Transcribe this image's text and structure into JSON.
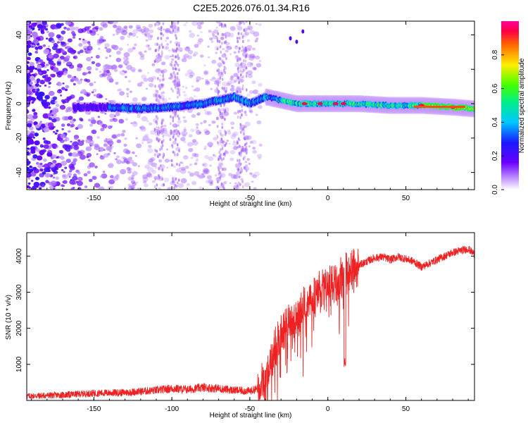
{
  "title": "C2E5.2026.076.01.34.R16",
  "chart_data": [
    {
      "type": "heatmap",
      "xlabel": "Height of straight line (km)",
      "ylabel": "Frequency (Hz)",
      "xlim": [
        -193,
        94
      ],
      "ylim": [
        -50,
        48
      ],
      "x_ticks": [
        -150,
        -100,
        -50,
        0,
        50
      ],
      "y_ticks": [
        -40,
        -20,
        0,
        20,
        40
      ],
      "colorbar": {
        "label": "Normalized spectral amplitude",
        "range": [
          0.0,
          1.0
        ],
        "ticks": [
          0.0,
          0.2,
          0.4,
          0.6,
          0.8
        ],
        "tick_labels": [
          "0.0",
          "0.2",
          "0.4",
          "0.6",
          "0.8"
        ]
      },
      "ridge": {
        "description_points_x": [
          -160,
          -140,
          -120,
          -100,
          -90,
          -80,
          -70,
          -60,
          -50,
          -40,
          -30,
          -20,
          0,
          20,
          40,
          60,
          80,
          94
        ],
        "description_points_y": [
          -2,
          -2,
          -3,
          -2,
          -1,
          0,
          2,
          4,
          0,
          4,
          2,
          0,
          0,
          0,
          -1,
          -1,
          -2,
          -3
        ],
        "peak_amplitude_x": [
          -15,
          -5,
          5,
          10,
          60,
          80
        ],
        "peak_amplitude": 0.95
      }
    },
    {
      "type": "line",
      "xlabel": "Height of straight line (km)",
      "ylabel": "SNR (10 * v/v)",
      "xlim": [
        -193,
        94
      ],
      "ylim": [
        0,
        4650
      ],
      "x_ticks": [
        -150,
        -100,
        -50,
        0,
        50
      ],
      "y_ticks": [
        1000,
        2000,
        3000,
        4000
      ],
      "series": [
        {
          "name": "SNR",
          "color": "#ee2222",
          "x": [
            -193,
            -170,
            -150,
            -130,
            -110,
            -100,
            -90,
            -80,
            -70,
            -60,
            -50,
            -45,
            -40,
            -35,
            -30,
            -25,
            -20,
            -15,
            -10,
            -5,
            0,
            5,
            10,
            15,
            20,
            25,
            30,
            35,
            40,
            45,
            50,
            55,
            60,
            65,
            70,
            75,
            80,
            85,
            90,
            94
          ],
          "values": [
            120,
            150,
            200,
            220,
            280,
            330,
            300,
            360,
            330,
            280,
            260,
            330,
            700,
            1300,
            1900,
            2150,
            2300,
            2550,
            2800,
            3000,
            3100,
            3250,
            3400,
            3600,
            3750,
            3850,
            3950,
            3980,
            3900,
            3980,
            3920,
            3850,
            3700,
            3800,
            3900,
            4000,
            4100,
            4150,
            4200,
            4050
          ]
        }
      ]
    }
  ]
}
